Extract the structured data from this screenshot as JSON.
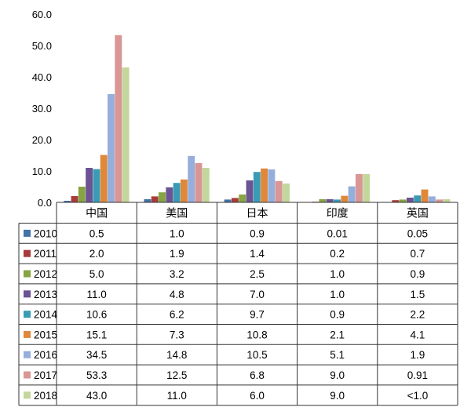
{
  "chart_data": {
    "type": "bar",
    "categories": [
      "中国",
      "美国",
      "日本",
      "印度",
      "英国"
    ],
    "ylim": [
      0,
      60
    ],
    "yticks": [
      "0.0",
      "10.0",
      "20.0",
      "30.0",
      "40.0",
      "50.0",
      "60.0"
    ],
    "series": [
      {
        "name": "2010",
        "color": "#4472a8",
        "values": [
          0.5,
          1.0,
          0.9,
          0.01,
          0.05
        ],
        "labels": [
          "0.5",
          "1.0",
          "0.9",
          "0.01",
          "0.05"
        ]
      },
      {
        "name": "2011",
        "color": "#a83c3a",
        "values": [
          2.0,
          1.9,
          1.4,
          0.2,
          0.7
        ],
        "labels": [
          "2.0",
          "1.9",
          "1.4",
          "0.2",
          "0.7"
        ]
      },
      {
        "name": "2012",
        "color": "#86a443",
        "values": [
          5.0,
          3.2,
          2.5,
          1.0,
          0.9
        ],
        "labels": [
          "5.0",
          "3.2",
          "2.5",
          "1.0",
          "0.9"
        ]
      },
      {
        "name": "2013",
        "color": "#6c5393",
        "values": [
          11.0,
          4.8,
          7.0,
          1.0,
          1.5
        ],
        "labels": [
          "11.0",
          "4.8",
          "7.0",
          "1.0",
          "1.5"
        ]
      },
      {
        "name": "2014",
        "color": "#3a9bb5",
        "values": [
          10.6,
          6.2,
          9.7,
          0.9,
          2.2
        ],
        "labels": [
          "10.6",
          "6.2",
          "9.7",
          "0.9",
          "2.2"
        ]
      },
      {
        "name": "2015",
        "color": "#e0883a",
        "values": [
          15.1,
          7.3,
          10.8,
          2.1,
          4.1
        ],
        "labels": [
          "15.1",
          "7.3",
          "10.8",
          "2.1",
          "4.1"
        ]
      },
      {
        "name": "2016",
        "color": "#95aedb",
        "values": [
          34.5,
          14.8,
          10.5,
          5.1,
          1.9
        ],
        "labels": [
          "34.5",
          "14.8",
          "10.5",
          "5.1",
          "1.9"
        ]
      },
      {
        "name": "2017",
        "color": "#d99694",
        "values": [
          53.3,
          12.5,
          6.8,
          9.0,
          0.91
        ],
        "labels": [
          "53.3",
          "12.5",
          "6.8",
          "9.0",
          "0.91"
        ]
      },
      {
        "name": "2018",
        "color": "#c3d69b",
        "values": [
          43.0,
          11.0,
          6.0,
          9.0,
          1.0
        ],
        "labels": [
          "43.0",
          "11.0",
          "6.0",
          "9.0",
          "<1.0"
        ]
      }
    ]
  }
}
